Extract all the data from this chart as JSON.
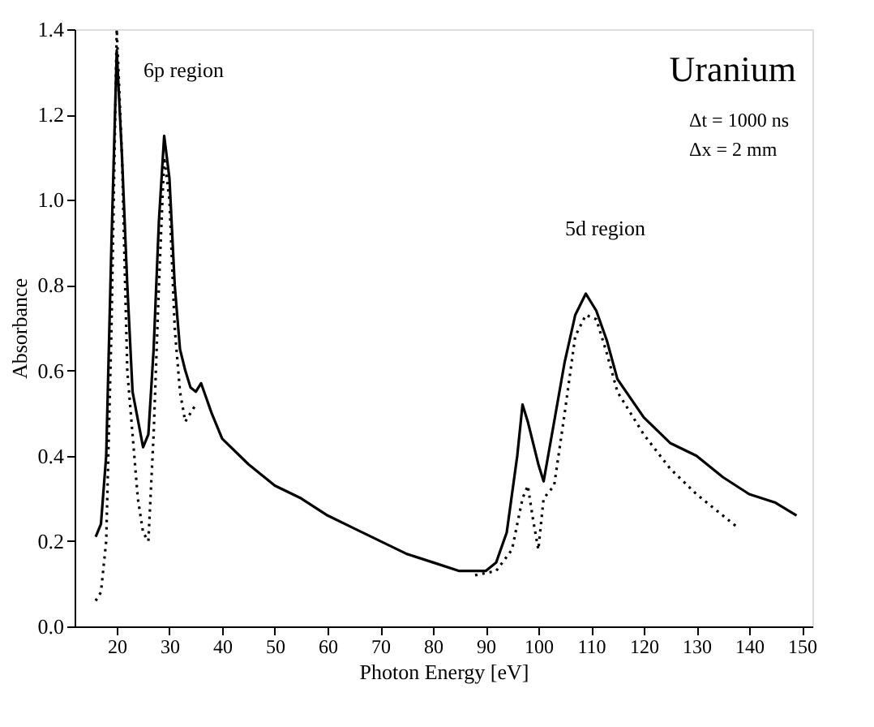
{
  "chart_data": {
    "type": "line",
    "title": "Uranium",
    "xlabel": "Photon Energy [eV]",
    "ylabel": "Absorbance",
    "xlim": [
      12,
      152
    ],
    "xticks": [
      20,
      30,
      40,
      50,
      60,
      70,
      80,
      90,
      100,
      110,
      120,
      130,
      140,
      150
    ],
    "ylim": [
      0,
      1.4
    ],
    "yticks": [
      {
        "value": 0,
        "label": "0.0"
      },
      {
        "value": 0.2,
        "label": "0.2"
      },
      {
        "value": 0.4,
        "label": "0.4"
      },
      {
        "value": 0.6,
        "label": "0.6"
      },
      {
        "value": 0.8,
        "label": "0.8"
      },
      {
        "value": 1,
        "label": "1.0"
      },
      {
        "value": 1.2,
        "label": "1.2"
      },
      {
        "value": 1.4,
        "label": "1.4"
      }
    ],
    "marker": "none",
    "annotations": [
      "Δt = 1000 ns",
      "Δx = 2 mm",
      {
        "text": "6p region",
        "x": 29,
        "y": 1.15
      },
      {
        "text": "5d region",
        "x": 109,
        "y": 0.78
      }
    ],
    "series": [
      {
        "color": "#000000",
        "line_style": "solid",
        "x": [
          16,
          17,
          18,
          19,
          20,
          21,
          22,
          23,
          25,
          26,
          27,
          28,
          29,
          30,
          31,
          32,
          33,
          34,
          35,
          36,
          38,
          40,
          45,
          50,
          55,
          60,
          65,
          70,
          75,
          80,
          85,
          90,
          92,
          94,
          96,
          97,
          98,
          100,
          101,
          103,
          105,
          107,
          109,
          111,
          113,
          115,
          120,
          125,
          130,
          135,
          140,
          145,
          149
        ],
        "values": [
          0.21,
          0.24,
          0.4,
          0.9,
          1.35,
          1.1,
          0.8,
          0.55,
          0.42,
          0.45,
          0.65,
          0.95,
          1.15,
          1.05,
          0.8,
          0.65,
          0.6,
          0.56,
          0.55,
          0.57,
          0.5,
          0.44,
          0.38,
          0.33,
          0.3,
          0.26,
          0.23,
          0.2,
          0.17,
          0.15,
          0.13,
          0.13,
          0.15,
          0.22,
          0.4,
          0.52,
          0.48,
          0.38,
          0.34,
          0.48,
          0.62,
          0.73,
          0.78,
          0.74,
          0.67,
          0.58,
          0.49,
          0.43,
          0.4,
          0.35,
          0.31,
          0.29,
          0.26
        ]
      },
      {
        "color": "#000000",
        "line_style": "dotted",
        "x": [
          16,
          17,
          18,
          19,
          20,
          21,
          22,
          23,
          24,
          25,
          26,
          27,
          28,
          29,
          30,
          31,
          32,
          33,
          34,
          35,
          60,
          88,
          92,
          95,
          97,
          98,
          99,
          100,
          101,
          103,
          105,
          107,
          109,
          111,
          113,
          115,
          120,
          125,
          130,
          135,
          138
        ],
        "values": [
          0.06,
          0.08,
          0.2,
          0.7,
          1.4,
          1.1,
          0.6,
          0.45,
          0.3,
          0.22,
          0.2,
          0.45,
          0.8,
          1.1,
          1.0,
          0.7,
          0.55,
          0.48,
          0.5,
          0.52,
          null,
          0.12,
          0.13,
          0.18,
          0.3,
          0.33,
          0.25,
          0.18,
          0.3,
          0.33,
          0.5,
          0.68,
          0.73,
          0.72,
          0.64,
          0.55,
          0.45,
          0.37,
          0.31,
          0.26,
          0.23
        ]
      }
    ]
  }
}
